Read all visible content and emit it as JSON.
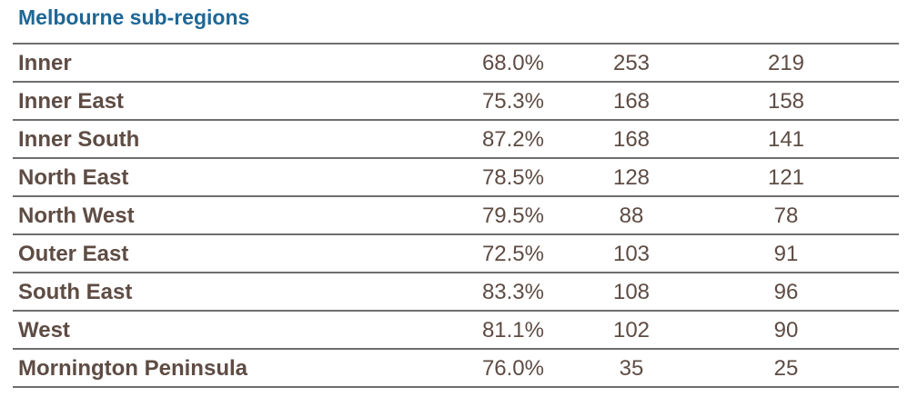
{
  "title": "Melbourne sub-regions",
  "rows": [
    {
      "name": "Inner",
      "pct": "68.0%",
      "a": "253",
      "b": "219"
    },
    {
      "name": "Inner East",
      "pct": "75.3%",
      "a": "168",
      "b": "158"
    },
    {
      "name": "Inner South",
      "pct": "87.2%",
      "a": "168",
      "b": "141"
    },
    {
      "name": "North East",
      "pct": "78.5%",
      "a": "128",
      "b": "121"
    },
    {
      "name": "North West",
      "pct": "79.5%",
      "a": "88",
      "b": "78"
    },
    {
      "name": "Outer East",
      "pct": "72.5%",
      "a": "103",
      "b": "91"
    },
    {
      "name": "South East",
      "pct": "83.3%",
      "a": "108",
      "b": "96"
    },
    {
      "name": "West",
      "pct": "81.1%",
      "a": "102",
      "b": "90"
    },
    {
      "name": "Mornington Peninsula",
      "pct": "76.0%",
      "a": "35",
      "b": "25"
    }
  ],
  "colors": {
    "title": "#1f6796",
    "text": "#5e4c44",
    "rule": "#6e6e6e"
  }
}
